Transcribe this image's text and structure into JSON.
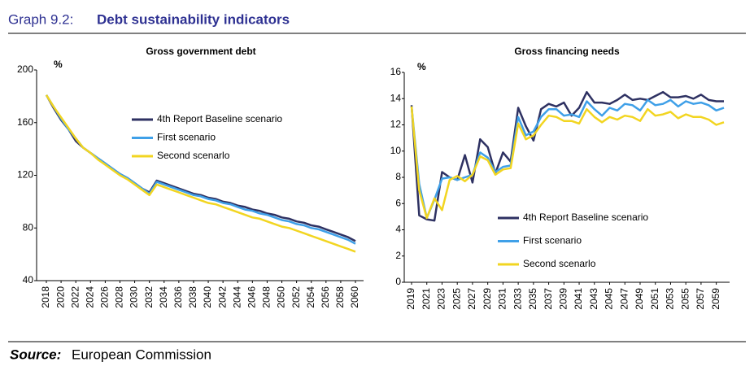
{
  "header": {
    "label": "Graph 9.2:",
    "title": "Debt sustainability indicators"
  },
  "source": {
    "label": "Source:",
    "text": "European Commission"
  },
  "chart_data": [
    {
      "type": "line",
      "title": "Gross government debt",
      "y_unit": "%",
      "x": [
        2018,
        2019,
        2020,
        2021,
        2022,
        2023,
        2024,
        2025,
        2026,
        2027,
        2028,
        2029,
        2030,
        2031,
        2032,
        2033,
        2034,
        2035,
        2036,
        2037,
        2038,
        2039,
        2040,
        2041,
        2042,
        2043,
        2044,
        2045,
        2046,
        2047,
        2048,
        2049,
        2050,
        2051,
        2052,
        2053,
        2054,
        2055,
        2056,
        2057,
        2058,
        2059,
        2060
      ],
      "xlim": [
        2018,
        2060
      ],
      "xticks": [
        2018,
        2020,
        2022,
        2024,
        2026,
        2028,
        2030,
        2032,
        2034,
        2036,
        2038,
        2040,
        2042,
        2044,
        2046,
        2048,
        2050,
        2052,
        2054,
        2056,
        2058,
        2060
      ],
      "ylim": [
        40,
        200
      ],
      "yticks": [
        40,
        80,
        120,
        160,
        200
      ],
      "legend": "upper center",
      "series": [
        {
          "name": "4th Report Baseline scenario",
          "color": "#2e3162",
          "values": [
            181,
            171,
            162,
            155,
            146,
            141,
            137,
            133,
            129,
            125,
            121,
            118,
            114,
            110,
            107,
            116,
            114,
            112,
            110,
            108,
            106,
            105,
            103,
            102,
            100,
            99,
            97,
            96,
            94,
            93,
            91,
            90,
            88,
            87,
            85,
            84,
            82,
            81,
            79,
            77,
            75,
            73,
            70
          ]
        },
        {
          "name": "First scenario",
          "color": "#3fa0e8",
          "values": [
            181,
            172,
            163,
            155,
            148,
            141,
            137,
            133,
            129,
            125,
            121,
            118,
            114,
            110,
            106,
            115,
            113,
            111,
            109,
            107,
            105,
            104,
            102,
            101,
            99,
            98,
            96,
            94,
            93,
            91,
            90,
            88,
            86,
            85,
            83,
            82,
            80,
            79,
            77,
            75,
            73,
            71,
            68
          ]
        },
        {
          "name": "Second scenarlo",
          "color": "#f2d521",
          "values": [
            181,
            172,
            164,
            156,
            148,
            141,
            137,
            132,
            128,
            124,
            120,
            117,
            113,
            109,
            105,
            113,
            111,
            109,
            107,
            105,
            103,
            101,
            99,
            98,
            96,
            94,
            92,
            90,
            88,
            87,
            85,
            83,
            81,
            80,
            78,
            76,
            74,
            72,
            70,
            68,
            66,
            64,
            62
          ]
        }
      ]
    },
    {
      "type": "line",
      "title": "Gross financing needs",
      "y_unit": "%",
      "x": [
        2019,
        2020,
        2021,
        2022,
        2023,
        2024,
        2025,
        2026,
        2027,
        2028,
        2029,
        2030,
        2031,
        2032,
        2033,
        2034,
        2035,
        2036,
        2037,
        2038,
        2039,
        2040,
        2041,
        2042,
        2043,
        2044,
        2045,
        2046,
        2047,
        2048,
        2049,
        2050,
        2051,
        2052,
        2053,
        2054,
        2055,
        2056,
        2057,
        2058,
        2059,
        2060
      ],
      "xlim": [
        2019,
        2060
      ],
      "xticks": [
        2019,
        2021,
        2023,
        2025,
        2027,
        2029,
        2031,
        2033,
        2035,
        2037,
        2039,
        2041,
        2043,
        2045,
        2047,
        2049,
        2051,
        2053,
        2055,
        2057,
        2059
      ],
      "ylim": [
        0,
        16
      ],
      "yticks": [
        0,
        2,
        4,
        6,
        8,
        10,
        12,
        14,
        16
      ],
      "legend": "lower center",
      "series": [
        {
          "name": "4th Report Baseline scenario",
          "color": "#2e3162",
          "values": [
            13.5,
            5.1,
            4.8,
            4.7,
            8.4,
            8.0,
            7.8,
            9.7,
            7.6,
            10.9,
            10.3,
            8.3,
            9.9,
            9.2,
            13.3,
            11.9,
            10.8,
            13.2,
            13.6,
            13.4,
            13.7,
            12.7,
            13.3,
            14.5,
            13.7,
            13.7,
            13.6,
            13.9,
            14.3,
            13.9,
            14.0,
            13.9,
            14.2,
            14.5,
            14.1,
            14.1,
            14.2,
            14.0,
            14.3,
            13.9,
            13.8,
            13.8
          ]
        },
        {
          "name": "First scenario",
          "color": "#3fa0e8",
          "values": [
            13.4,
            7.5,
            4.9,
            6.3,
            7.9,
            8.0,
            7.8,
            8.0,
            8.2,
            9.9,
            9.5,
            8.4,
            8.8,
            8.9,
            12.6,
            11.2,
            11.5,
            12.6,
            13.2,
            13.2,
            12.7,
            12.8,
            12.6,
            13.8,
            13.2,
            12.7,
            13.3,
            13.1,
            13.6,
            13.5,
            13.1,
            13.9,
            13.5,
            13.6,
            13.9,
            13.4,
            13.8,
            13.6,
            13.7,
            13.5,
            13.1,
            13.3
          ]
        },
        {
          "name": "Second scenarlo",
          "color": "#f2d521",
          "values": [
            13.4,
            7.0,
            4.9,
            6.4,
            5.5,
            7.8,
            8.1,
            7.7,
            8.2,
            9.6,
            9.3,
            8.2,
            8.6,
            8.7,
            12.1,
            10.9,
            11.2,
            12.0,
            12.7,
            12.6,
            12.3,
            12.3,
            12.1,
            13.2,
            12.6,
            12.2,
            12.6,
            12.4,
            12.7,
            12.6,
            12.3,
            13.2,
            12.7,
            12.8,
            13.0,
            12.5,
            12.8,
            12.6,
            12.6,
            12.4,
            12.0,
            12.2
          ]
        }
      ]
    }
  ]
}
